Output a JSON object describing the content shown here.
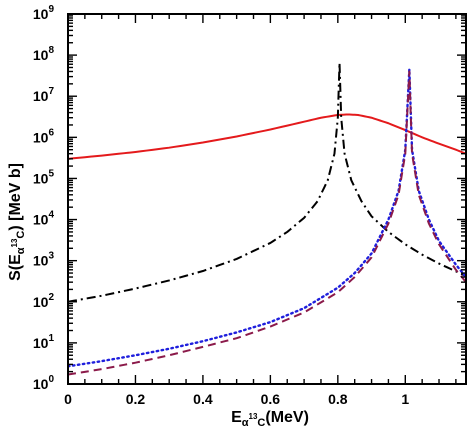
{
  "chart_data": {
    "type": "line",
    "xlabel": {
      "base": "E",
      "sub_alpha": "α",
      "sub_sup": "13",
      "sub_tail": "C",
      "tail": "(MeV)"
    },
    "ylabel": {
      "head": "S(E",
      "sub_alpha": "α",
      "sub_sup": "13",
      "sub_tail": "C",
      "tail": ") [MeV b]"
    },
    "x_ticks": [
      {
        "v": 0,
        "label": "0"
      },
      {
        "v": 0.2,
        "label": "0.2"
      },
      {
        "v": 0.4,
        "label": "0.4"
      },
      {
        "v": 0.6,
        "label": "0.6"
      },
      {
        "v": 0.8,
        "label": "0.8"
      },
      {
        "v": 1.0,
        "label": "1"
      }
    ],
    "y_ticks": [
      {
        "exp": 0,
        "label": "10",
        "sup": "0"
      },
      {
        "exp": 1,
        "label": "10",
        "sup": "1"
      },
      {
        "exp": 2,
        "label": "10",
        "sup": "2"
      },
      {
        "exp": 3,
        "label": "10",
        "sup": "3"
      },
      {
        "exp": 4,
        "label": "10",
        "sup": "4"
      },
      {
        "exp": 5,
        "label": "10",
        "sup": "5"
      },
      {
        "exp": 6,
        "label": "10",
        "sup": "6"
      },
      {
        "exp": 7,
        "label": "10",
        "sup": "7"
      },
      {
        "exp": 8,
        "label": "10",
        "sup": "8"
      },
      {
        "exp": 9,
        "label": "10",
        "sup": "9"
      }
    ],
    "xlim": [
      0,
      1.18
    ],
    "ylim": [
      1,
      1000000000
    ],
    "y_scale": "log",
    "grid": false,
    "legend": "none",
    "series": [
      {
        "color": "#e41a1c",
        "style": "solid",
        "points": [
          [
            0,
            300000.0
          ],
          [
            0.1,
            360000.0
          ],
          [
            0.2,
            440000.0
          ],
          [
            0.3,
            560000.0
          ],
          [
            0.4,
            750000.0
          ],
          [
            0.5,
            1050000.0
          ],
          [
            0.6,
            1550000.0
          ],
          [
            0.7,
            2400000.0
          ],
          [
            0.75,
            3000000.0
          ],
          [
            0.8,
            3500000.0
          ],
          [
            0.83,
            3600000.0
          ],
          [
            0.86,
            3500000.0
          ],
          [
            0.9,
            3000000.0
          ],
          [
            0.95,
            2200000.0
          ],
          [
            1.0,
            1500000.0
          ],
          [
            1.05,
            1000000.0
          ],
          [
            1.1,
            700000.0
          ],
          [
            1.15,
            500000.0
          ],
          [
            1.18,
            400000.0
          ]
        ]
      },
      {
        "color": "#000000",
        "style": "dashdot",
        "points": [
          [
            0,
            100
          ],
          [
            0.1,
            140
          ],
          [
            0.2,
            210
          ],
          [
            0.3,
            330
          ],
          [
            0.4,
            560
          ],
          [
            0.5,
            1100
          ],
          [
            0.6,
            2700
          ],
          [
            0.65,
            5000
          ],
          [
            0.7,
            11000.0
          ],
          [
            0.74,
            28000.0
          ],
          [
            0.77,
            90000.0
          ],
          [
            0.79,
            400000.0
          ],
          [
            0.8,
            3000000.0
          ],
          [
            0.805,
            65000000.0
          ],
          [
            0.81,
            3000000.0
          ],
          [
            0.82,
            400000.0
          ],
          [
            0.84,
            90000.0
          ],
          [
            0.87,
            28000.0
          ],
          [
            0.9,
            12000.0
          ],
          [
            0.95,
            5000
          ],
          [
            1.0,
            2500
          ],
          [
            1.05,
            1400
          ],
          [
            1.1,
            850
          ],
          [
            1.15,
            550
          ],
          [
            1.18,
            420
          ]
        ]
      },
      {
        "color": "#1f1fdd",
        "style": "dotted",
        "points": [
          [
            0,
            2.7
          ],
          [
            0.1,
            3.6
          ],
          [
            0.2,
            5.0
          ],
          [
            0.3,
            7.2
          ],
          [
            0.4,
            11
          ],
          [
            0.5,
            18
          ],
          [
            0.6,
            32
          ],
          [
            0.7,
            70
          ],
          [
            0.8,
            220
          ],
          [
            0.85,
            500
          ],
          [
            0.9,
            1500
          ],
          [
            0.95,
            10000.0
          ],
          [
            0.98,
            50000.0
          ],
          [
            1.0,
            500000.0
          ],
          [
            1.012,
            45000000.0
          ],
          [
            1.02,
            500000.0
          ],
          [
            1.04,
            50000.0
          ],
          [
            1.07,
            10000.0
          ],
          [
            1.1,
            3000
          ],
          [
            1.15,
            800
          ],
          [
            1.18,
            400
          ]
        ]
      },
      {
        "color": "#8b1a4a",
        "style": "dashed",
        "points": [
          [
            0,
            1.7
          ],
          [
            0.1,
            2.3
          ],
          [
            0.2,
            3.3
          ],
          [
            0.3,
            5.0
          ],
          [
            0.4,
            8.0
          ],
          [
            0.5,
            13
          ],
          [
            0.6,
            25
          ],
          [
            0.7,
            55
          ],
          [
            0.8,
            170
          ],
          [
            0.85,
            400
          ],
          [
            0.9,
            1200
          ],
          [
            0.95,
            8000
          ],
          [
            0.98,
            40000.0
          ],
          [
            1.0,
            400000.0
          ],
          [
            1.012,
            40000000.0
          ],
          [
            1.02,
            400000.0
          ],
          [
            1.04,
            40000.0
          ],
          [
            1.07,
            8000
          ],
          [
            1.1,
            2500
          ],
          [
            1.15,
            600
          ],
          [
            1.18,
            300
          ]
        ]
      }
    ]
  }
}
